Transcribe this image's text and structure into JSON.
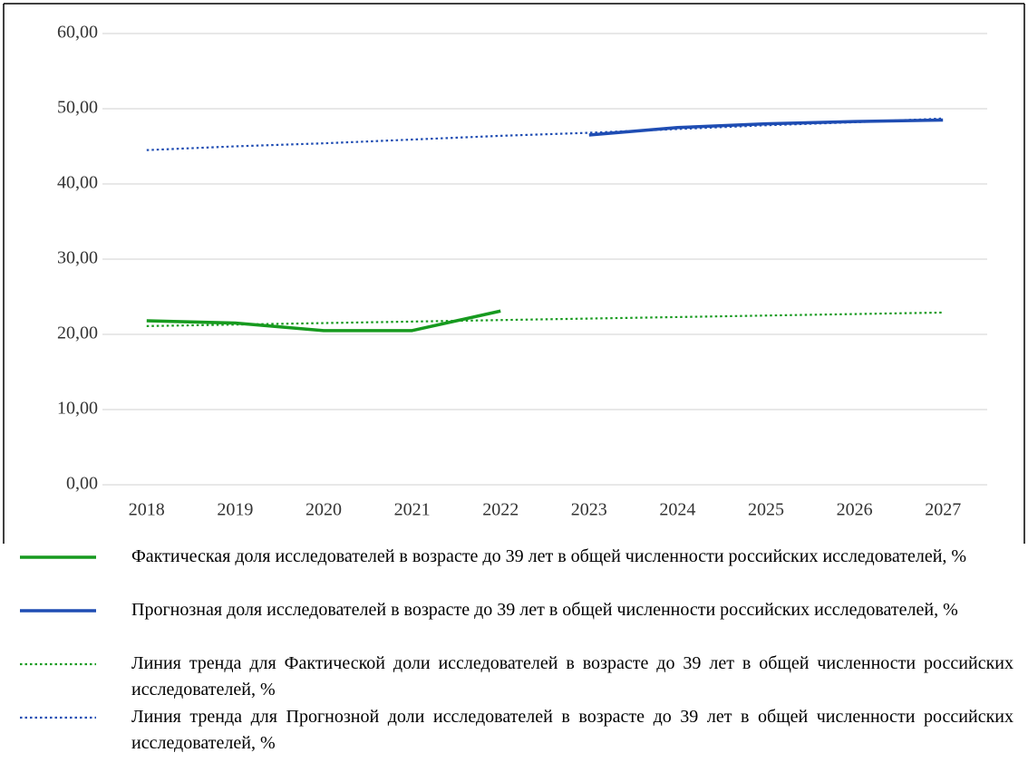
{
  "chart_data": {
    "type": "line",
    "categories": [
      "2018",
      "2019",
      "2020",
      "2021",
      "2022",
      "2023",
      "2024",
      "2025",
      "2026",
      "2027"
    ],
    "series": [
      {
        "name": "Фактическая доля исследователей в возрасте до 39 лет в общей численности российских исследователей, %",
        "color": "#179a1f",
        "style": "solid",
        "values": [
          21.8,
          21.5,
          20.5,
          20.5,
          23.1,
          null,
          null,
          null,
          null,
          null
        ]
      },
      {
        "name": "Прогнозная доля исследователей в возрасте до 39 лет в общей численности российских исследователей, %",
        "color": "#1f4db3",
        "style": "solid",
        "values": [
          null,
          null,
          null,
          null,
          null,
          46.5,
          47.5,
          48.0,
          48.3,
          48.5
        ]
      },
      {
        "name": "Линия тренда для Фактической доли исследователей в возрасте до 39 лет в общей численности российских исследователей, %",
        "color": "#179a1f",
        "style": "dotted",
        "values": [
          21.1,
          21.3,
          21.5,
          21.7,
          21.9,
          22.1,
          22.3,
          22.5,
          22.7,
          22.9
        ]
      },
      {
        "name": "Линия тренда для Прогнозной доли исследователей в возрасте до 39 лет в общей численности российских исследователей, %",
        "color": "#1f4db3",
        "style": "dotted",
        "values": [
          44.5,
          45.0,
          45.4,
          45.9,
          46.4,
          46.8,
          47.3,
          47.8,
          48.2,
          48.7
        ]
      }
    ],
    "ylim": [
      0,
      60
    ],
    "yticks": [
      {
        "value": 0,
        "label": "0,00"
      },
      {
        "value": 10,
        "label": "10,00"
      },
      {
        "value": 20,
        "label": "20,00"
      },
      {
        "value": 30,
        "label": "30,00"
      },
      {
        "value": 40,
        "label": "40,00"
      },
      {
        "value": 50,
        "label": "50,00"
      },
      {
        "value": 60,
        "label": "60,00"
      }
    ],
    "grid": true
  }
}
